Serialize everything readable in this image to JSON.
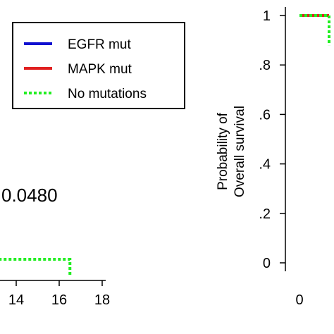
{
  "chart_data": [
    {
      "type": "line",
      "title": "",
      "xlabel": "",
      "ylabel": "",
      "annotation": "0.0480",
      "xticks": [
        "14",
        "16",
        "18"
      ],
      "legend": {
        "placement": "top",
        "entries": [
          {
            "label": "EGFR mut",
            "color": "#1010d0",
            "style": "solid"
          },
          {
            "label": "MAPK mut",
            "color": "#e02020",
            "style": "solid"
          },
          {
            "label": "No mutations",
            "color": "#22ee22",
            "style": "dotted"
          }
        ]
      },
      "series": [
        {
          "name": "No mutations",
          "color": "#22ee22",
          "style": "dotted",
          "x": [
            12.5,
            16.5,
            16.5
          ],
          "y": [
            0.08,
            0.08,
            0.01
          ]
        }
      ]
    },
    {
      "type": "line",
      "title": "",
      "xlabel": "",
      "ylabel_lines": [
        "Probability of",
        "Overall survival"
      ],
      "yticks": [
        "0",
        ".2",
        ".4",
        ".6",
        ".8",
        "1"
      ],
      "xticks": [
        "0"
      ],
      "ylim": [
        0,
        1
      ],
      "series": [
        {
          "name": "MAPK mut",
          "color": "#e02020",
          "style": "solid",
          "x": [
            0,
            1.4
          ],
          "y": [
            1.0,
            1.0
          ]
        },
        {
          "name": "No mutations",
          "color": "#22ee22",
          "style": "dotted",
          "x": [
            0,
            1.4,
            1.4
          ],
          "y": [
            1.0,
            1.0,
            0.88
          ]
        }
      ]
    }
  ]
}
